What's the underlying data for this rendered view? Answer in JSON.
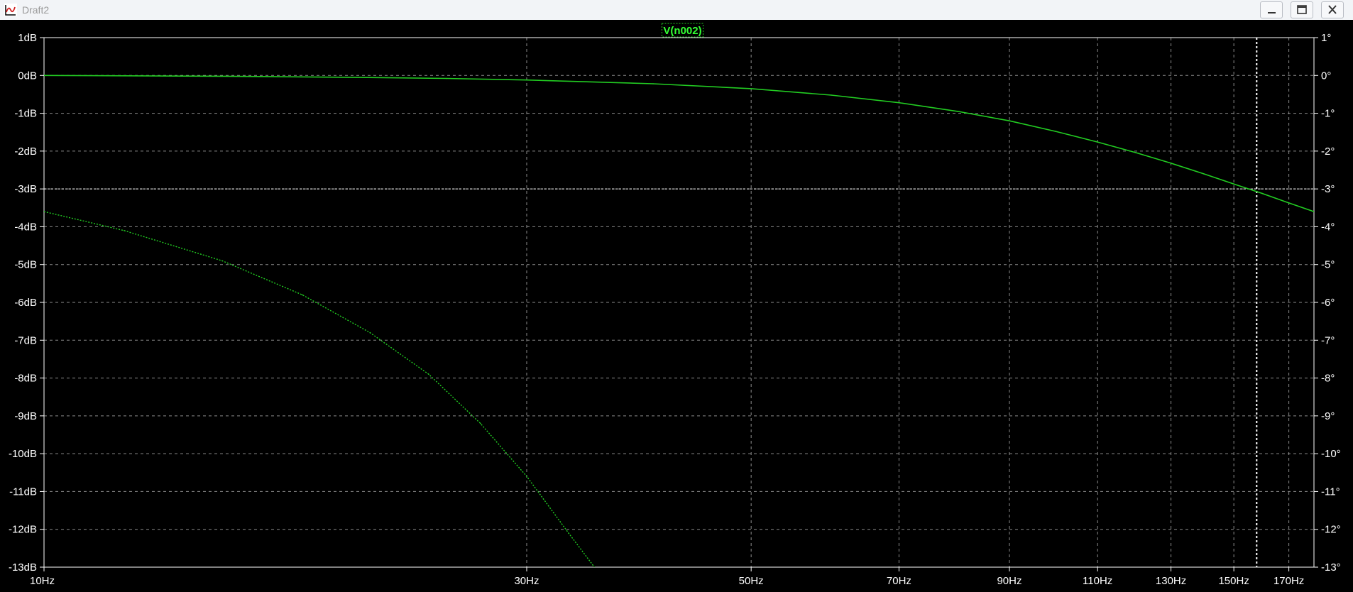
{
  "window": {
    "title": "Draft2",
    "icon": "waveform-plot-icon",
    "controls": [
      "minimize-icon",
      "maximize-icon",
      "close-icon"
    ]
  },
  "colors": {
    "background": "#000000",
    "trace": "#22cc22",
    "grid": "#8c8c8c",
    "axis_text": "#ffffff",
    "marker_line": "#ffffff",
    "trace_label_bg": "#000000",
    "trace_label_text": "#33ff33"
  },
  "chart_data": {
    "type": "line",
    "trace_label": "V(n002)",
    "x_scale": "log",
    "xlim": [
      10,
      180
    ],
    "x_ticks": [
      10,
      30,
      50,
      70,
      90,
      110,
      130,
      150,
      170
    ],
    "x_tick_labels": [
      "10Hz",
      "30Hz",
      "50Hz",
      "70Hz",
      "90Hz",
      "110Hz",
      "130Hz",
      "150Hz",
      "170Hz"
    ],
    "y_left": {
      "unit": "dB",
      "ylim": [
        -13,
        1
      ],
      "ticks": [
        1,
        0,
        -1,
        -2,
        -3,
        -4,
        -5,
        -6,
        -7,
        -8,
        -9,
        -10,
        -11,
        -12,
        -13
      ],
      "tick_labels": [
        "1dB",
        "0dB",
        "-1dB",
        "-2dB",
        "-3dB",
        "-4dB",
        "-5dB",
        "-6dB",
        "-7dB",
        "-8dB",
        "-9dB",
        "-10dB",
        "-11dB",
        "-12dB",
        "-13dB"
      ]
    },
    "y_right": {
      "unit": "°",
      "ylim": [
        -13,
        1
      ],
      "ticks": [
        1,
        0,
        -1,
        -2,
        -3,
        -4,
        -5,
        -6,
        -7,
        -8,
        -9,
        -10,
        -11,
        -12,
        -13
      ],
      "tick_labels": [
        "1°",
        "0°",
        "-1°",
        "-2°",
        "-3°",
        "-4°",
        "-5°",
        "-6°",
        "-7°",
        "-8°",
        "-9°",
        "-10°",
        "-11°",
        "-12°",
        "-13°"
      ]
    },
    "grid": true,
    "series": [
      {
        "axis": "left",
        "style": "solid",
        "x": [
          10,
          15,
          20,
          25,
          30,
          40,
          50,
          60,
          70,
          80,
          90,
          100,
          110,
          120,
          130,
          140,
          150,
          160,
          170,
          180
        ],
        "y": [
          0.0,
          -0.02,
          -0.05,
          -0.08,
          -0.12,
          -0.22,
          -0.35,
          -0.52,
          -0.72,
          -0.95,
          -1.2,
          -1.48,
          -1.76,
          -2.04,
          -2.32,
          -2.6,
          -2.87,
          -3.12,
          -3.37,
          -3.6
        ]
      },
      {
        "axis": "right",
        "style": "dotted",
        "x": [
          10,
          12,
          15,
          18,
          21,
          24,
          27,
          30,
          33,
          35
        ],
        "y": [
          -3.6,
          -4.1,
          -4.9,
          -5.8,
          -6.8,
          -7.9,
          -9.2,
          -10.6,
          -12.1,
          -13.0
        ]
      }
    ],
    "markers": {
      "horizontal_y": -3,
      "vertical_x": 158
    }
  }
}
